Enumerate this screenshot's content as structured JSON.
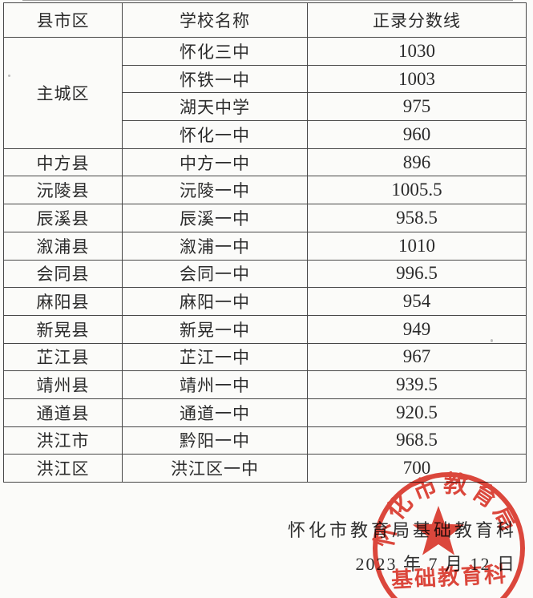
{
  "table": {
    "headers": [
      "县市区",
      "学校名称",
      "正录分数线"
    ],
    "rows": [
      {
        "district": "主城区",
        "district_rowspan": 4,
        "school": "怀化三中",
        "score": "1030"
      },
      {
        "school": "怀铁一中",
        "score": "1003"
      },
      {
        "school": "湖天中学",
        "score": "975"
      },
      {
        "school": "怀化一中",
        "score": "960"
      },
      {
        "district": "中方县",
        "school": "中方一中",
        "score": "896"
      },
      {
        "district": "沅陵县",
        "school": "沅陵一中",
        "score": "1005.5"
      },
      {
        "district": "辰溪县",
        "school": "辰溪一中",
        "score": "958.5"
      },
      {
        "district": "溆浦县",
        "school": "溆浦一中",
        "score": "1010"
      },
      {
        "district": "会同县",
        "school": "会同一中",
        "score": "996.5"
      },
      {
        "district": "麻阳县",
        "school": "麻阳一中",
        "score": "954"
      },
      {
        "district": "新晃县",
        "school": "新晃一中",
        "score": "949"
      },
      {
        "district": "芷江县",
        "school": "芷江一中",
        "score": "967"
      },
      {
        "district": "靖州县",
        "school": "靖州一中",
        "score": "939.5"
      },
      {
        "district": "通道县",
        "school": "通道一中",
        "score": "920.5"
      },
      {
        "district": "洪江市",
        "school": "黔阳一中",
        "score": "968.5"
      },
      {
        "district": "洪江区",
        "school": "洪江区一中",
        "score": "700"
      }
    ]
  },
  "footer": {
    "signature": "怀化市教育局基础教育科",
    "date": "2023 年 7 月 12 日"
  },
  "seal": {
    "arc_text": "怀化市教育局",
    "arc_chars": [
      "怀",
      "化",
      "市",
      "教",
      "育",
      "局"
    ],
    "bottom_text": "基础教育科",
    "color": "#dd382c"
  },
  "colors": {
    "paper": "#fbfbf9",
    "ink": "#2b2b2b",
    "table_border": "#474747",
    "seal_red": "#dd382c"
  }
}
